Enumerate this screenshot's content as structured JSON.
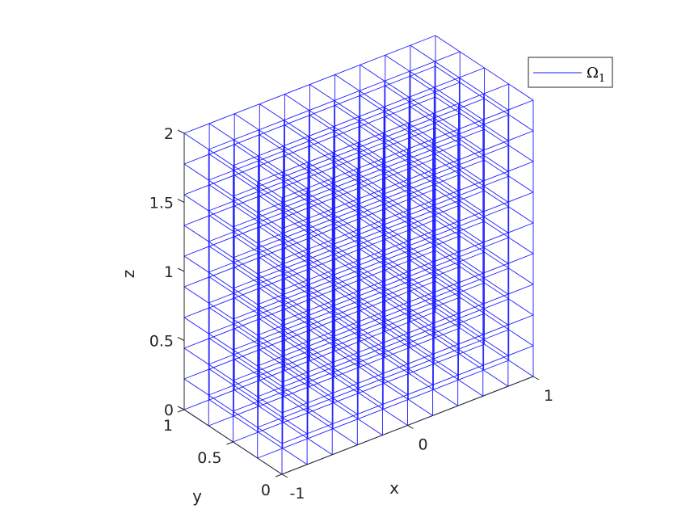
{
  "chart_data": {
    "type": "wireframe-3d",
    "title": "",
    "xlabel": "x",
    "ylabel": "y",
    "zlabel": "z",
    "xlim": [
      -1,
      1
    ],
    "ylim": [
      0,
      1
    ],
    "zlim": [
      0,
      2
    ],
    "xticks": [
      {
        "value": -1,
        "label": "-1"
      },
      {
        "value": 0,
        "label": "0"
      },
      {
        "value": 1,
        "label": "1"
      }
    ],
    "yticks": [
      {
        "value": 0,
        "label": "0"
      },
      {
        "value": 0.5,
        "label": "0.5"
      },
      {
        "value": 1,
        "label": "1"
      }
    ],
    "zticks": [
      {
        "value": 0,
        "label": "0"
      },
      {
        "value": 0.5,
        "label": "0.5"
      },
      {
        "value": 1,
        "label": "1"
      },
      {
        "value": 1.5,
        "label": "1.5"
      },
      {
        "value": 2,
        "label": "2"
      }
    ],
    "mesh": {
      "x_divisions": 10,
      "y_divisions": 4,
      "z_divisions": 9,
      "color": "#1a1aff"
    },
    "series": [
      {
        "name": "Ω",
        "subscript": "1",
        "color": "#1a1aff"
      }
    ],
    "legend_position": "top-right"
  }
}
